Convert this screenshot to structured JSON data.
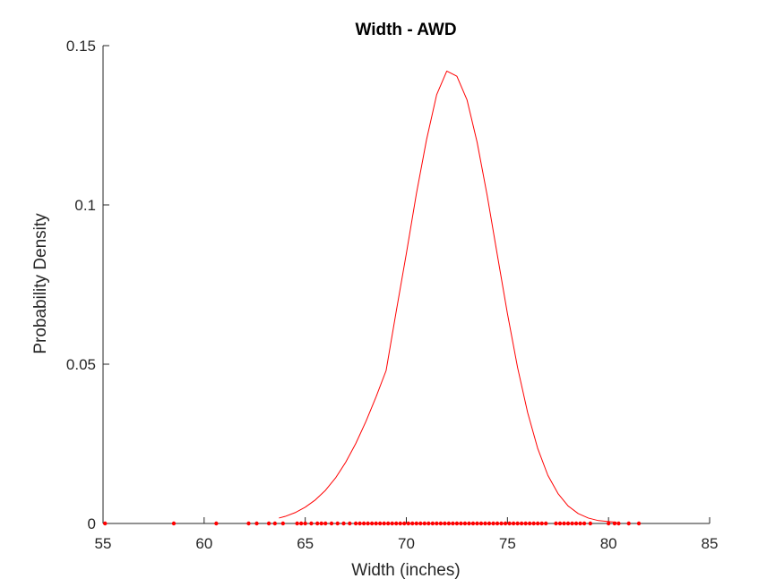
{
  "chart_data": {
    "type": "scatter",
    "title": "Width - AWD",
    "xlabel": "Width (inches)",
    "ylabel": "Probability Density",
    "xlim": [
      55,
      85
    ],
    "ylim": [
      0,
      0.15
    ],
    "xticks": [
      "55",
      "60",
      "65",
      "70",
      "75",
      "80",
      "85"
    ],
    "yticks": [
      "0",
      "0.05",
      "0.1",
      "0.15"
    ],
    "grid": false,
    "colors": {
      "series": "#ff0000",
      "axis": "#262626"
    },
    "series": [
      {
        "type": "line",
        "x": [
          63.7,
          64,
          64.5,
          65,
          65.5,
          66,
          66.5,
          67,
          67.5,
          68,
          68.5,
          69,
          69.5,
          70,
          70.5,
          71,
          71.5,
          72,
          72.5,
          73,
          73.5,
          74,
          74.5,
          75,
          75.5,
          76,
          76.5,
          77,
          77.5,
          78,
          78.5,
          79,
          79.5,
          80,
          80.4
        ],
        "y": [
          0.0017,
          0.0022,
          0.0034,
          0.0051,
          0.0074,
          0.0104,
          0.0143,
          0.0192,
          0.0251,
          0.032,
          0.0397,
          0.048,
          0.0666,
          0.0847,
          0.1036,
          0.1205,
          0.1346,
          0.142,
          0.1404,
          0.133,
          0.1197,
          0.1029,
          0.0843,
          0.0659,
          0.049,
          0.0348,
          0.0235,
          0.0151,
          0.0094,
          0.0055,
          0.0031,
          0.0017,
          0.0009,
          0.0006,
          0.0004
        ]
      },
      {
        "type": "scatter",
        "x": [
          55.1,
          58.5,
          60.6,
          62.2,
          62.6,
          63.2,
          63.5,
          63.9,
          64.6,
          64.8,
          65.0,
          65.3,
          65.6,
          65.8,
          66.0,
          66.3,
          66.6,
          66.9,
          67.2,
          67.5,
          67.7,
          67.9,
          68.1,
          68.3,
          68.5,
          68.7,
          68.9,
          69.1,
          69.3,
          69.5,
          69.7,
          69.9,
          70.1,
          70.3,
          70.5,
          70.7,
          70.9,
          71.1,
          71.3,
          71.5,
          71.7,
          71.9,
          72.1,
          72.3,
          72.5,
          72.7,
          72.9,
          73.1,
          73.3,
          73.5,
          73.7,
          73.9,
          74.1,
          74.3,
          74.5,
          74.7,
          74.9,
          75.1,
          75.3,
          75.5,
          75.7,
          75.9,
          76.1,
          76.3,
          76.5,
          76.7,
          76.9,
          77.4,
          77.6,
          77.8,
          78.0,
          78.2,
          78.4,
          78.6,
          78.8,
          79.1,
          80.0,
          80.3,
          80.5,
          81.0,
          81.5
        ],
        "y": [
          0,
          0,
          0,
          0,
          0,
          0,
          0,
          0,
          0,
          0,
          0,
          0,
          0,
          0,
          0,
          0,
          0,
          0,
          0,
          0,
          0,
          0,
          0,
          0,
          0,
          0,
          0,
          0,
          0,
          0,
          0,
          0,
          0,
          0,
          0,
          0,
          0,
          0,
          0,
          0,
          0,
          0,
          0,
          0,
          0,
          0,
          0,
          0,
          0,
          0,
          0,
          0,
          0,
          0,
          0,
          0,
          0,
          0,
          0,
          0,
          0,
          0,
          0,
          0,
          0,
          0,
          0,
          0,
          0,
          0,
          0,
          0,
          0,
          0,
          0,
          0,
          0,
          0,
          0,
          0,
          0
        ]
      }
    ]
  }
}
